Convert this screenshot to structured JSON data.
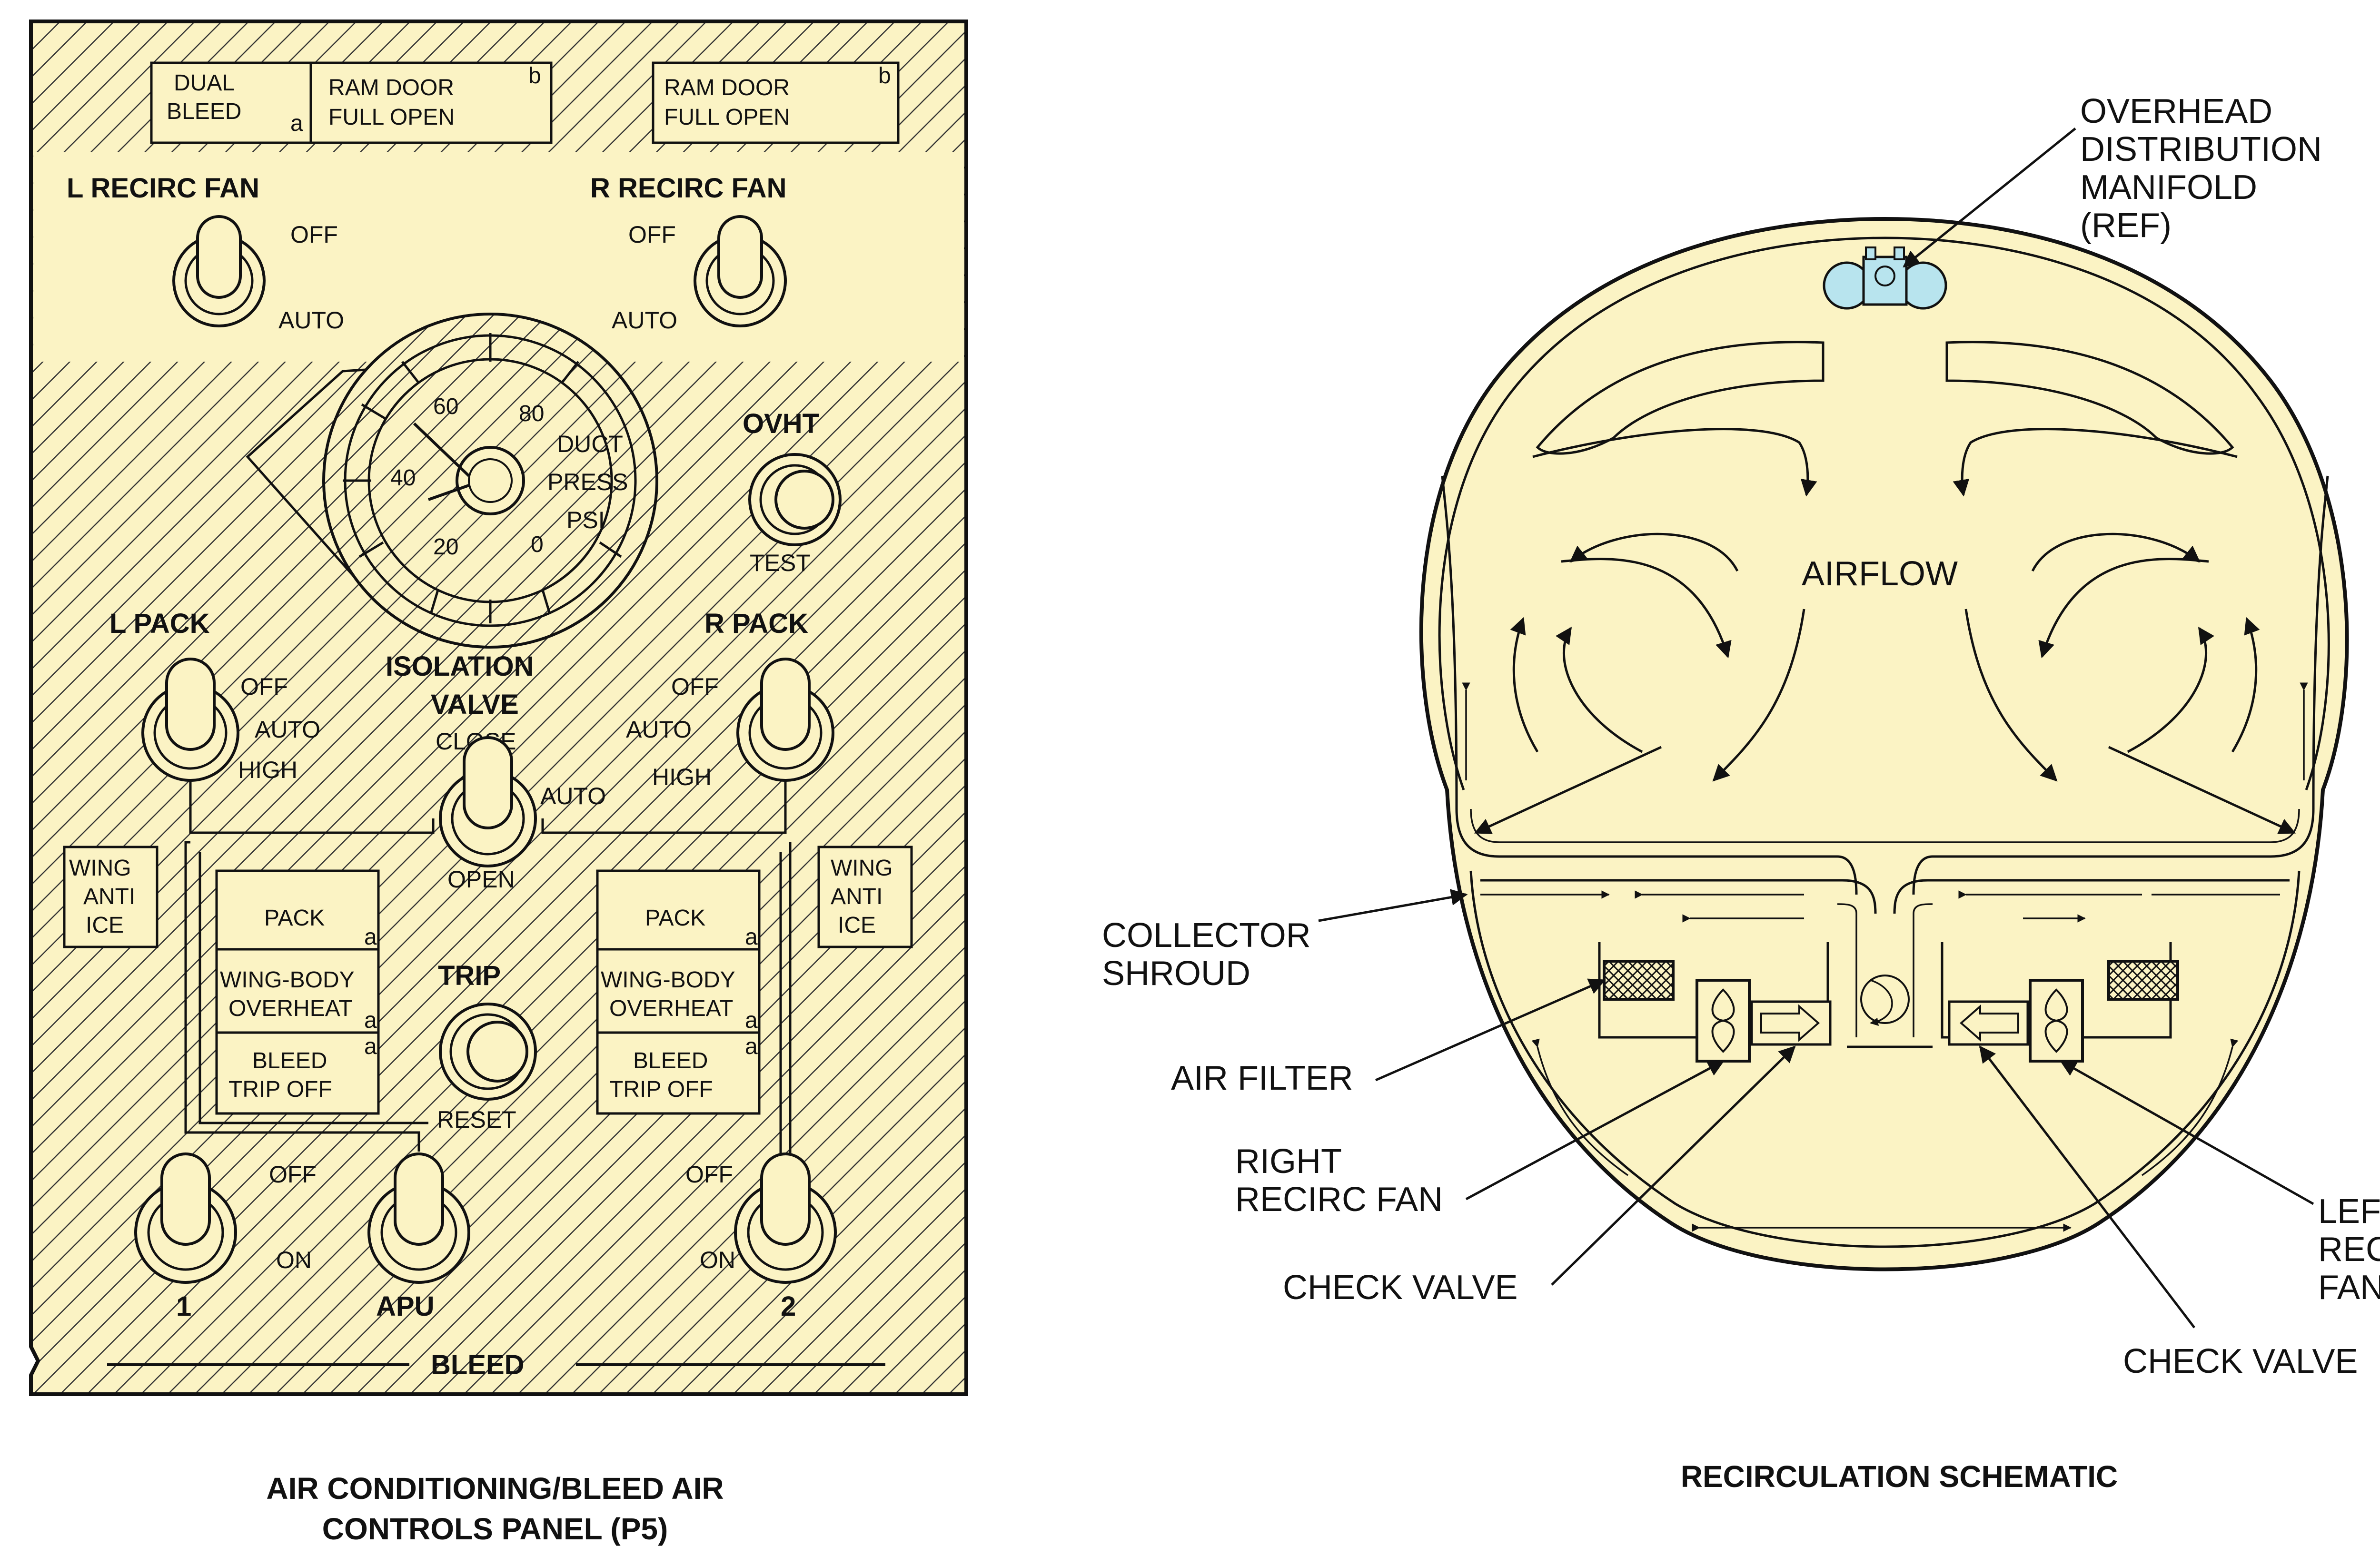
{
  "colors": {
    "panel_fill": "#fbf3c4",
    "hatch": "#333333",
    "manifold": "#b8e4ee",
    "ink": "#111111"
  },
  "panel": {
    "dual_bleed": [
      "DUAL",
      "BLEED"
    ],
    "ram_door": [
      "RAM DOOR",
      "FULL OPEN"
    ],
    "sub_a": "a",
    "sub_b": "b",
    "l_recirc_fan": "L RECIRC FAN",
    "r_recirc_fan": "R RECIRC FAN",
    "off": "OFF",
    "auto": "AUTO",
    "gauge_ticks": [
      "60",
      "80",
      "40",
      "20",
      "0"
    ],
    "duct_press": [
      "DUCT",
      "PRESS",
      "PSI"
    ],
    "ovht": "OVHT",
    "test": "TEST",
    "l_pack": "L PACK",
    "r_pack": "R PACK",
    "high": "HIGH",
    "isolation_valve": [
      "ISOLATION",
      "VALVE"
    ],
    "close": "CLOSE",
    "open": "OPEN",
    "wing_anti_ice": [
      "WING",
      "ANTI",
      "ICE"
    ],
    "pack": "PACK",
    "wing_body_overheat": [
      "WING-BODY",
      "OVERHEAT"
    ],
    "bleed_trip_off": [
      "BLEED",
      "TRIP OFF"
    ],
    "trip": "TRIP",
    "reset": "RESET",
    "on": "ON",
    "bleed_1": "1",
    "bleed_apu": "APU",
    "bleed_2": "2",
    "bleed": "BLEED",
    "caption": [
      "AIR CONDITIONING/BLEED AIR",
      "CONTROLS PANEL (P5)"
    ]
  },
  "schematic": {
    "overhead_manifold": [
      "OVERHEAD",
      "DISTRIBUTION",
      "MANIFOLD",
      "(REF)"
    ],
    "airflow": "AIRFLOW",
    "collector_shroud": [
      "COLLECTOR",
      "SHROUD"
    ],
    "air_filter": "AIR FILTER",
    "right_recirc_fan": [
      "RIGHT",
      "RECIRC FAN"
    ],
    "check_valve": "CHECK VALVE",
    "left_recirc_fan": [
      "LEFT",
      "RECIRC",
      "FAN"
    ],
    "check_valve_2": "CHECK VALVE",
    "caption": "RECIRCULATION SCHEMATIC"
  }
}
